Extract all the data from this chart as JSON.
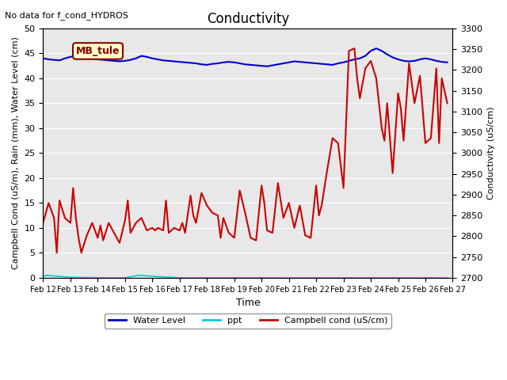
{
  "title": "Conductivity",
  "top_left_text": "No data for f_cond_HYDROS",
  "xlabel": "Time",
  "ylabel_left": "Campbell Cond (uS/m), Rain (mm), Water Level (cm)",
  "ylabel_right": "Conductivity (uS/cm)",
  "site_label": "MB_tule",
  "xlim": [
    0,
    15
  ],
  "ylim_left": [
    0,
    50
  ],
  "ylim_right": [
    2700,
    3300
  ],
  "xtick_labels": [
    "Feb 12",
    "Feb 13",
    "Feb 14",
    "Feb 15",
    "Feb 16",
    "Feb 17",
    "Feb 18",
    "Feb 19",
    "Feb 20",
    "Feb 21",
    "Feb 22",
    "Feb 23",
    "Feb 24",
    "Feb 25",
    "Feb 26",
    "Feb 27"
  ],
  "yticks_left": [
    0,
    5,
    10,
    15,
    20,
    25,
    30,
    35,
    40,
    45,
    50
  ],
  "yticks_right": [
    2700,
    2750,
    2800,
    2850,
    2900,
    2950,
    3000,
    3050,
    3100,
    3150,
    3200,
    3250,
    3300
  ],
  "background_color": "#e8e8e8",
  "water_level_color": "#0000cc",
  "ppt_color": "#00cccc",
  "campbell_cond_color": "#cc0000",
  "water_level_x": [
    0,
    0.2,
    0.4,
    0.6,
    0.8,
    1.0,
    1.2,
    1.4,
    1.6,
    1.8,
    2.0,
    2.2,
    2.4,
    2.6,
    2.8,
    3.0,
    3.2,
    3.4,
    3.6,
    3.8,
    4.0,
    4.2,
    4.4,
    4.6,
    4.8,
    5.0,
    5.2,
    5.4,
    5.6,
    5.8,
    6.0,
    6.2,
    6.4,
    6.6,
    6.8,
    7.0,
    7.2,
    7.4,
    7.6,
    7.8,
    8.0,
    8.2,
    8.4,
    8.6,
    8.8,
    9.0,
    9.2,
    9.4,
    9.6,
    9.8,
    10.0,
    10.2,
    10.4,
    10.6,
    10.8,
    11.0,
    11.2,
    11.4,
    11.6,
    11.8,
    12.0,
    12.2,
    12.4,
    12.6,
    12.8,
    13.0,
    13.2,
    13.4,
    13.6,
    13.8,
    14.0,
    14.2,
    14.4,
    14.6,
    14.8
  ],
  "water_level_y": [
    44.0,
    43.8,
    43.7,
    43.6,
    44.0,
    44.3,
    44.5,
    44.3,
    44.1,
    44.0,
    43.8,
    43.7,
    43.6,
    43.5,
    43.4,
    43.5,
    43.7,
    44.0,
    44.5,
    44.3,
    44.0,
    43.8,
    43.6,
    43.5,
    43.4,
    43.3,
    43.2,
    43.1,
    43.0,
    42.8,
    42.7,
    42.9,
    43.0,
    43.2,
    43.3,
    43.2,
    43.0,
    42.8,
    42.7,
    42.6,
    42.5,
    42.4,
    42.6,
    42.8,
    43.0,
    43.2,
    43.4,
    43.3,
    43.2,
    43.1,
    43.0,
    42.9,
    42.8,
    42.7,
    43.0,
    43.2,
    43.5,
    43.8,
    44.0,
    44.5,
    45.5,
    46.0,
    45.5,
    44.8,
    44.2,
    43.8,
    43.5,
    43.4,
    43.5,
    43.8,
    44.0,
    43.8,
    43.5,
    43.3,
    43.2
  ],
  "ppt_x": [
    0,
    0.1,
    0.5,
    1.0,
    2.0,
    3.0,
    3.5,
    4.0,
    5.0,
    6.0,
    7.0,
    8.0,
    9.0,
    10.0,
    11.0,
    12.0,
    13.0,
    14.0,
    14.8
  ],
  "ppt_y": [
    0.2,
    0.5,
    0.3,
    0.1,
    0.0,
    0.0,
    0.5,
    0.3,
    0.0,
    0.0,
    0.0,
    0.0,
    0.0,
    0.0,
    0.0,
    0.0,
    0.0,
    0.0,
    0.0
  ],
  "campbell_x": [
    0.0,
    0.2,
    0.4,
    0.5,
    0.6,
    0.8,
    1.0,
    1.1,
    1.2,
    1.3,
    1.4,
    1.6,
    1.8,
    2.0,
    2.1,
    2.2,
    2.4,
    2.6,
    2.8,
    3.0,
    3.1,
    3.2,
    3.4,
    3.6,
    3.8,
    4.0,
    4.1,
    4.2,
    4.4,
    4.5,
    4.6,
    4.8,
    5.0,
    5.1,
    5.2,
    5.4,
    5.5,
    5.6,
    5.8,
    6.0,
    6.2,
    6.4,
    6.5,
    6.6,
    6.8,
    7.0,
    7.2,
    7.4,
    7.6,
    7.8,
    8.0,
    8.1,
    8.2,
    8.4,
    8.6,
    8.8,
    9.0,
    9.2,
    9.4,
    9.6,
    9.8,
    10.0,
    10.1,
    10.2,
    10.4,
    10.6,
    10.8,
    11.0,
    11.2,
    11.4,
    11.5,
    11.6,
    11.8,
    12.0,
    12.2,
    12.4,
    12.5,
    12.6,
    12.8,
    13.0,
    13.1,
    13.2,
    13.4,
    13.6,
    13.8,
    14.0,
    14.2,
    14.4,
    14.5,
    14.6,
    14.8
  ],
  "campbell_y": [
    11.0,
    15.0,
    12.0,
    5.0,
    15.5,
    12.0,
    11.0,
    18.0,
    12.0,
    8.0,
    5.0,
    8.5,
    11.0,
    8.0,
    10.5,
    7.5,
    11.0,
    9.0,
    7.0,
    11.5,
    15.5,
    9.0,
    11.0,
    12.0,
    9.5,
    10.0,
    9.5,
    10.0,
    9.5,
    15.5,
    9.0,
    10.0,
    9.5,
    11.0,
    9.0,
    16.5,
    12.5,
    11.0,
    17.0,
    14.5,
    13.0,
    12.5,
    8.0,
    12.0,
    9.0,
    8.0,
    17.5,
    13.0,
    8.0,
    7.5,
    18.5,
    15.0,
    9.5,
    9.0,
    19.0,
    12.0,
    15.0,
    10.0,
    14.5,
    8.5,
    8.0,
    18.5,
    12.5,
    14.5,
    21.5,
    28.0,
    27.0,
    18.0,
    45.5,
    46.0,
    40.0,
    36.0,
    42.0,
    43.5,
    40.0,
    30.0,
    27.5,
    35.0,
    21.0,
    37.0,
    34.0,
    27.5,
    43.0,
    35.0,
    40.5,
    27.0,
    28.0,
    42.0,
    27.0,
    40.0,
    35.0
  ]
}
